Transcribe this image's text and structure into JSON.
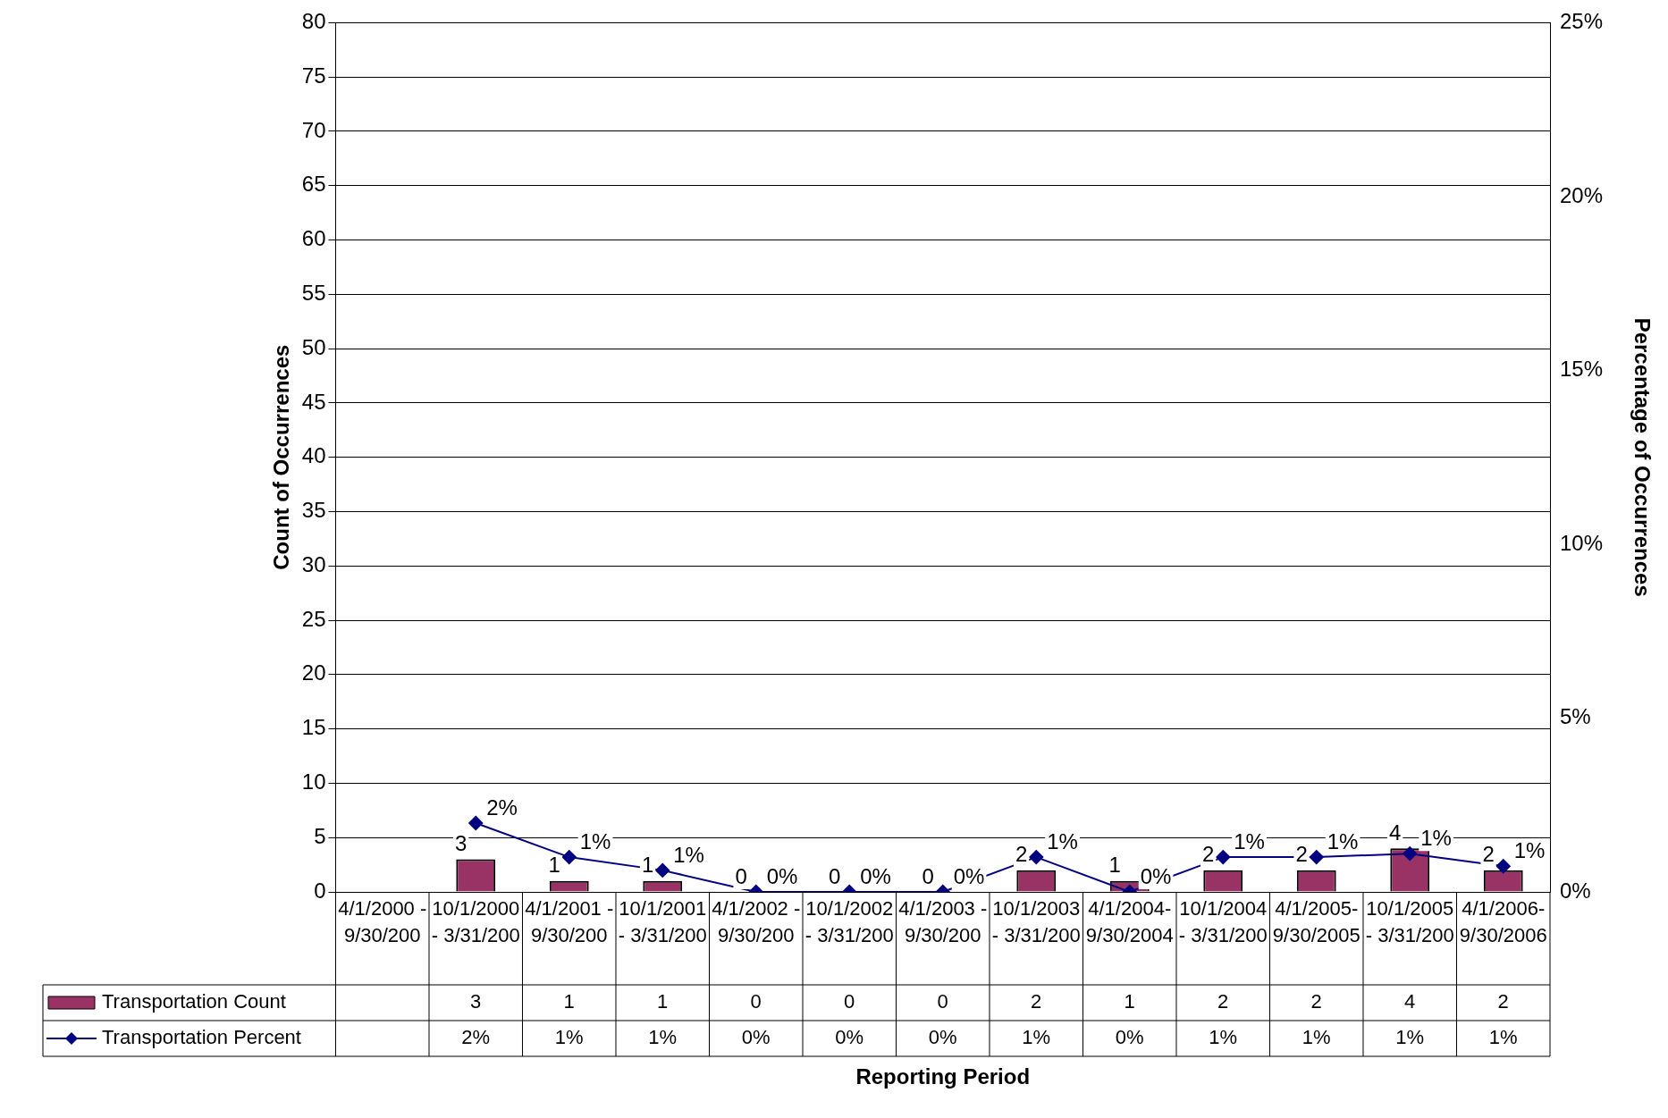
{
  "chart_data": {
    "type": "bar",
    "annotations": [
      "Reporting Period"
    ],
    "ylabel": "Count of Occurrences",
    "y2label": "Percentage of Occurrences",
    "categories": [
      "4/1/2000 - 9/30/200",
      "10/1/2000 - 3/31/200",
      "4/1/2001 - 9/30/200",
      "10/1/2001 - 3/31/200",
      "4/1/2002 - 9/30/200",
      "10/1/2002 - 3/31/200",
      "4/1/2003 - 9/30/200",
      "10/1/2003- 3/31/200",
      "4/1/2004- 9/30/2004",
      "10/1/2004- 3/31/200",
      "4/1/2005- 9/30/2005",
      "10/1/2005- 3/31/200",
      "4/1/2006- 9/30/2006"
    ],
    "series": [
      {
        "name": "Transportation Count",
        "type": "bar",
        "color": "#993366",
        "values": [
          null,
          3,
          1,
          1,
          0,
          0,
          0,
          2,
          1,
          2,
          2,
          4,
          2
        ],
        "value_labels": [
          null,
          "3",
          "1",
          "1",
          "0",
          "0",
          "0",
          "2",
          "1",
          "2",
          "2",
          "4",
          "2"
        ]
      },
      {
        "name": "Transportation Percent",
        "type": "line",
        "axis": "y2",
        "color": "#000080",
        "marker": "diamond",
        "line_style": "solid",
        "values": [
          null,
          1.98,
          1.0,
          0.62,
          0,
          0,
          0,
          1.0,
          0,
          1.0,
          1.0,
          1.1,
          0.74
        ],
        "value_labels": [
          null,
          "2%",
          "1%",
          "1%",
          "0%",
          "0%",
          "0%",
          "1%",
          "0%",
          "1%",
          "1%",
          "1%",
          "1%"
        ]
      }
    ],
    "ylim": [
      0,
      80
    ],
    "yticks": [
      0,
      5,
      10,
      15,
      20,
      25,
      30,
      35,
      40,
      45,
      50,
      55,
      60,
      65,
      70,
      75,
      80
    ],
    "y2lim": [
      0,
      25
    ],
    "y2ticks": [
      {
        "value": 0,
        "label": "0%"
      },
      {
        "value": 5,
        "label": "5%"
      },
      {
        "value": 10,
        "label": "10%"
      },
      {
        "value": 15,
        "label": "15%"
      },
      {
        "value": 20,
        "label": "20%"
      },
      {
        "value": 25,
        "label": "25%"
      }
    ],
    "grid": "y",
    "legend": "bottom"
  }
}
